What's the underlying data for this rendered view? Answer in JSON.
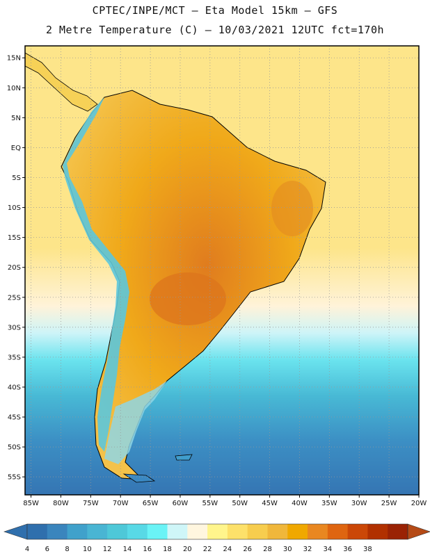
{
  "header": {
    "title_line1": "CPTEC/INPE/MCT –  Eta Model 15km – GFS",
    "title_line2": "2 Metre Temperature (C) – 10/03/2021 12UTC fct=170h"
  },
  "map": {
    "projection": "lat-lon",
    "lon_range": [
      -86,
      -20
    ],
    "lat_range": [
      -58,
      17
    ],
    "lon_ticks": [
      "85W",
      "80W",
      "75W",
      "70W",
      "65W",
      "60W",
      "55W",
      "50W",
      "45W",
      "40W",
      "35W",
      "30W",
      "25W",
      "20W"
    ],
    "lat_ticks": [
      "15N",
      "10N",
      "5N",
      "EQ",
      "5S",
      "10S",
      "15S",
      "20S",
      "25S",
      "30S",
      "35S",
      "40S",
      "45S",
      "50S",
      "55S"
    ],
    "gridlines": "dotted"
  },
  "legend": {
    "labels": [
      "4",
      "6",
      "8",
      "10",
      "12",
      "14",
      "16",
      "18",
      "20",
      "22",
      "24",
      "26",
      "28",
      "30",
      "32",
      "34",
      "36",
      "38"
    ],
    "colors": [
      "#2f6fad",
      "#3a85bd",
      "#40a1cb",
      "#49b5d3",
      "#4ec8d8",
      "#58d9e6",
      "#6af3f6",
      "#cff6f8",
      "#fff6df",
      "#fff58c",
      "#fde16a",
      "#f7cd4e",
      "#f0b73b",
      "#f0a800",
      "#e98720",
      "#df6510",
      "#cb4707",
      "#b13000",
      "#9a2204"
    ],
    "left_arrow_color": "#2f6fad",
    "right_arrow_color": "#b54a16"
  }
}
